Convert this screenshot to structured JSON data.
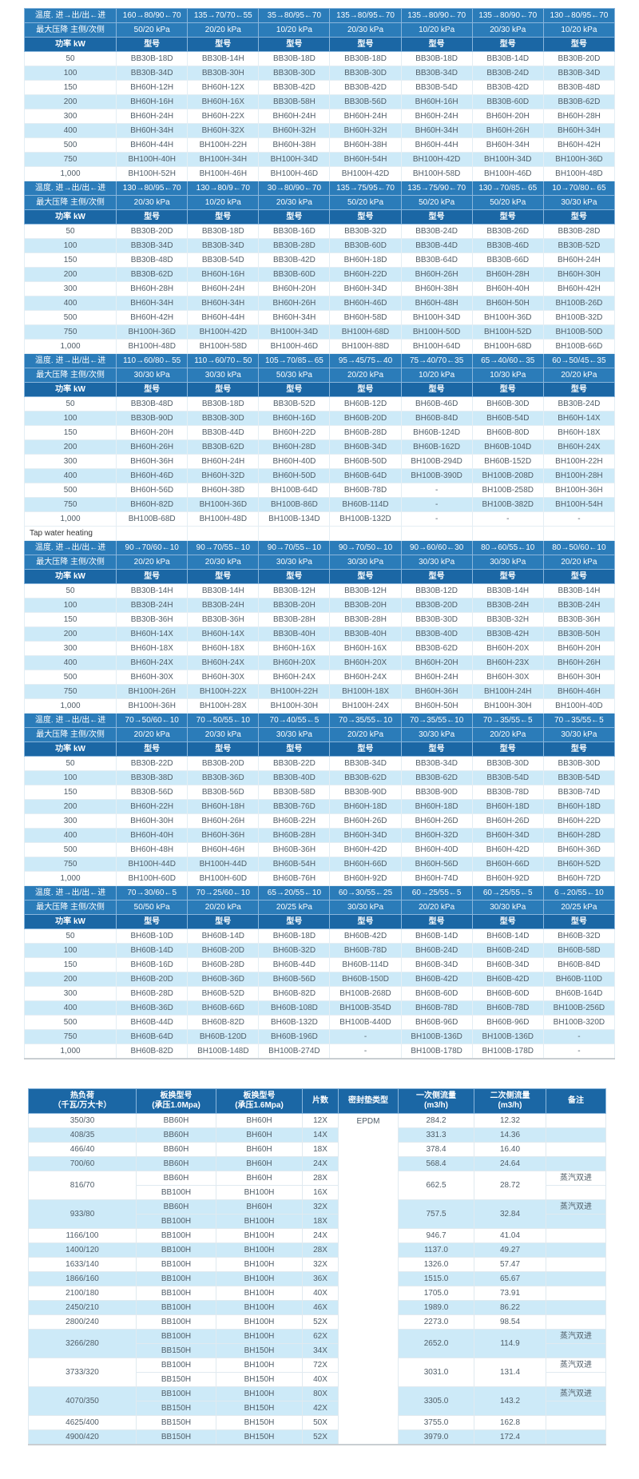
{
  "main_table": {
    "labels": {
      "temp": "温度. 进→出/出←进",
      "pressure": "最大压降 主侧/次侧",
      "power": "功率 kW",
      "model": "型号"
    },
    "power_rows": [
      "50",
      "100",
      "150",
      "200",
      "300",
      "400",
      "500",
      "750",
      "1,000"
    ],
    "tap_water_label": "Tap water heating",
    "sections": [
      {
        "temps": [
          "160→80/90←70",
          "135→70/70←55",
          "35→80/95←70",
          "135→80/95←70",
          "135→80/90←70",
          "135→80/90←70",
          "130→80/95←70"
        ],
        "pressures": [
          "50/20 kPa",
          "20/20 kPa",
          "10/20 kPa",
          "20/30 kPa",
          "10/20 kPa",
          "20/30 kPa",
          "10/20 kPa"
        ],
        "models": [
          [
            "BB30B-18D",
            "BB30B-14H",
            "BB30B-18D",
            "BB30B-18D",
            "BB30B-18D",
            "BB30B-14D",
            "BB30B-20D"
          ],
          [
            "BB30B-34D",
            "BB30B-30H",
            "BB30B-30D",
            "BB30B-30D",
            "BB30B-34D",
            "BB30B-24D",
            "BB30B-34D"
          ],
          [
            "BH60H-12H",
            "BH60H-12X",
            "BB30B-42D",
            "BB30B-42D",
            "BB30B-54D",
            "BB30B-42D",
            "BB30B-48D"
          ],
          [
            "BH60H-16H",
            "BH60H-16X",
            "BB30B-58H",
            "BB30B-56D",
            "BH60H-16H",
            "BB30B-60D",
            "BB30B-62D"
          ],
          [
            "BH60H-24H",
            "BH60H-22X",
            "BH60H-24H",
            "BH60H-24H",
            "BH60H-24H",
            "BH60H-20H",
            "BH60H-28H"
          ],
          [
            "BH60H-34H",
            "BH60H-32X",
            "BH60H-32H",
            "BH60H-32H",
            "BH60H-34H",
            "BH60H-26H",
            "BH60H-34H"
          ],
          [
            "BH60H-44H",
            "BH100H-22H",
            "BH60H-38H",
            "BH60H-38H",
            "BH60H-44H",
            "BH60H-34H",
            "BH60H-42H"
          ],
          [
            "BH100H-40H",
            "BH100H-34H",
            "BH100H-34D",
            "BH60H-54H",
            "BH100H-42D",
            "BH100H-34D",
            "BH100H-36D"
          ],
          [
            "BH100H-52H",
            "BH100H-46H",
            "BH100H-46D",
            "BH100H-42D",
            "BH100H-58D",
            "BH100H-46D",
            "BH100H-48D"
          ]
        ]
      },
      {
        "temps": [
          "130→80/95←70",
          "130→80/9←70",
          "30→80/90←70",
          "135→75/95←70",
          "135→75/90←70",
          "130→70/85←65",
          "10→70/80←65"
        ],
        "pressures": [
          "20/30 kPa",
          "10/20 kPa",
          "20/30 kPa",
          "50/20 kPa",
          "50/20 kPa",
          "50/20 kPa",
          "30/30 kPa"
        ],
        "models": [
          [
            "BB30B-20D",
            "BB30B-18D",
            "BB30B-16D",
            "BB30B-32D",
            "BB30B-24D",
            "BB30B-26D",
            "BB30B-28D"
          ],
          [
            "BB30B-34D",
            "BB30B-34D",
            "BB30B-28D",
            "BB30B-60D",
            "BB30B-44D",
            "BB30B-46D",
            "BB30B-52D"
          ],
          [
            "BB30B-48D",
            "BB30B-54D",
            "BB30B-42D",
            "BH60H-18D",
            "BB30B-64D",
            "BB30B-66D",
            "BH60H-24H"
          ],
          [
            "BB30B-62D",
            "BH60H-16H",
            "BB30B-60D",
            "BH60H-22D",
            "BH60H-26H",
            "BH60H-28H",
            "BH60H-30H"
          ],
          [
            "BH60H-28H",
            "BH60H-24H",
            "BH60H-20H",
            "BH60H-34D",
            "BH60H-38H",
            "BH60H-40H",
            "BH60H-42H"
          ],
          [
            "BH60H-34H",
            "BH60H-34H",
            "BH60H-26H",
            "BH60H-46D",
            "BH60H-48H",
            "BH60H-50H",
            "BH100B-26D"
          ],
          [
            "BH60H-42H",
            "BH60H-44H",
            "BH60H-34H",
            "BH60H-58D",
            "BH100H-34D",
            "BH100H-36D",
            "BH100B-32D"
          ],
          [
            "BH100H-36D",
            "BH100H-42D",
            "BH100H-34D",
            "BH100H-68D",
            "BH100H-50D",
            "BH100H-52D",
            "BH100B-50D"
          ],
          [
            "BH100H-48D",
            "BH100H-58D",
            "BH100H-46D",
            "BH100H-88D",
            "BH100H-64D",
            "BH100H-68D",
            "BH100B-66D"
          ]
        ]
      },
      {
        "temps": [
          "110→60/80←55",
          "110→60/70←50",
          "105→70/85←65",
          "95→45/75←40",
          "75→40/70←35",
          "65→40/60←35",
          "60→50/45←35"
        ],
        "pressures": [
          "30/30 kPa",
          "30/30 kPa",
          "50/30 kPa",
          "20/20 kPa",
          "10/20 kPa",
          "10/30 kPa",
          "20/20 kPa"
        ],
        "models": [
          [
            "BB30B-48D",
            "BB30B-18D",
            "BB30B-52D",
            "BH60B-12D",
            "BH60B-46D",
            "BH60B-30D",
            "BB30B-24D"
          ],
          [
            "BB30B-90D",
            "BB30B-30D",
            "BH60H-16D",
            "BH60B-20D",
            "BH60B-84D",
            "BH60B-54D",
            "BH60H-14X"
          ],
          [
            "BH60H-20H",
            "BB30B-44D",
            "BH60H-22D",
            "BH60B-28D",
            "BH60B-124D",
            "BH60B-80D",
            "BH60H-18X"
          ],
          [
            "BH60H-26H",
            "BB30B-62D",
            "BH60H-28D",
            "BH60B-34D",
            "BH60B-162D",
            "BH60B-104D",
            "BH60H-24X"
          ],
          [
            "BH60H-36H",
            "BH60H-24H",
            "BH60H-40D",
            "BH60B-50D",
            "BH100B-294D",
            "BH60B-152D",
            "BH100H-22H"
          ],
          [
            "BH60H-46D",
            "BH60H-32D",
            "BH60H-50D",
            "BH60B-64D",
            "BH100B-390D",
            "BH100B-208D",
            "BH100H-28H"
          ],
          [
            "BH60H-56D",
            "BH60H-38D",
            "BH100B-64D",
            "BH60B-78D",
            "-",
            "BH100B-258D",
            "BH100H-36H"
          ],
          [
            "BH60H-82D",
            "BH100H-36D",
            "BH100B-86D",
            "BH60B-114D",
            "-",
            "BH100B-382D",
            "BH100H-54H"
          ],
          [
            "BH100B-68D",
            "BH100H-48D",
            "BH100B-134D",
            "BH100B-132D",
            "-",
            "-",
            "-"
          ]
        ]
      },
      {
        "temps": [
          "90→70/60←10",
          "90→70/55←10",
          "90→70/55←10",
          "90→70/50←10",
          "90→60/60←30",
          "80→60/55←10",
          "80→50/60←10"
        ],
        "pressures": [
          "20/20 kPa",
          "20/30 kPa",
          "30/30 kPa",
          "30/30 kPa",
          "30/30 kPa",
          "30/30 kPa",
          "20/20 kPa"
        ],
        "models": [
          [
            "BB30B-14H",
            "BB30B-14H",
            "BB30B-12H",
            "BB30B-12H",
            "BB30B-12D",
            "BB30B-14H",
            "BB30B-14H"
          ],
          [
            "BB30B-24H",
            "BB30B-24H",
            "BB30B-20H",
            "BB30B-20H",
            "BB30B-20D",
            "BB30B-24H",
            "BB30B-24H"
          ],
          [
            "BB30B-36H",
            "BB30B-36H",
            "BB30B-28H",
            "BB30B-28H",
            "BB30B-30D",
            "BB30B-32H",
            "BB30B-36H"
          ],
          [
            "BH60H-14X",
            "BH60H-14X",
            "BB30B-40H",
            "BB30B-40H",
            "BB30B-40D",
            "BB30B-42H",
            "BB30B-50H"
          ],
          [
            "BH60H-18X",
            "BH60H-18X",
            "BH60H-16X",
            "BH60H-16X",
            "BB30B-62D",
            "BH60H-20X",
            "BH60H-20H"
          ],
          [
            "BH60H-24X",
            "BH60H-24X",
            "BH60H-20X",
            "BH60H-20X",
            "BH60H-20H",
            "BH60H-23X",
            "BH60H-26H"
          ],
          [
            "BH60H-30X",
            "BH60H-30X",
            "BH60H-24X",
            "BH60H-24X",
            "BH60H-24H",
            "BH60H-30X",
            "BH60H-30H"
          ],
          [
            "BH100H-26H",
            "BH100H-22X",
            "BH100H-22H",
            "BH100H-18X",
            "BH60H-36H",
            "BH100H-24H",
            "BH60H-46H"
          ],
          [
            "BH100H-36H",
            "BH100H-28X",
            "BH100H-30H",
            "BH100H-24X",
            "BH60H-50H",
            "BH100H-30H",
            "BH100H-40D"
          ]
        ]
      },
      {
        "temps": [
          "70→50/60←10",
          "70→50/55←10",
          "70→40/55←5",
          "70→35/55←10",
          "70→35/55←10",
          "70→35/55←5",
          "70→35/55←5"
        ],
        "pressures": [
          "20/20 kPa",
          "20/30 kPa",
          "30/30 kPa",
          "20/20 kPa",
          "30/30 kPa",
          "20/20 kPa",
          "30/30 kPa"
        ],
        "models": [
          [
            "BB30B-22D",
            "BB30B-20D",
            "BB30B-22D",
            "BB30B-34D",
            "BB30B-34D",
            "BB30B-30D",
            "BB30B-30D"
          ],
          [
            "BB30B-38D",
            "BB30B-36D",
            "BB30B-40D",
            "BB30B-62D",
            "BB30B-62D",
            "BB30B-54D",
            "BB30B-54D"
          ],
          [
            "BB30B-56D",
            "BB30B-56D",
            "BB30B-58D",
            "BB30B-90D",
            "BB30B-90D",
            "BB30B-78D",
            "BB30B-74D"
          ],
          [
            "BH60H-22H",
            "BH60H-18H",
            "BB30B-76D",
            "BH60H-18D",
            "BH60H-18D",
            "BH60H-18D",
            "BH60H-18D"
          ],
          [
            "BH60H-30H",
            "BH60H-26H",
            "BH60B-22H",
            "BH60H-26D",
            "BH60H-26D",
            "BH60H-26D",
            "BH60H-22D"
          ],
          [
            "BH60H-40H",
            "BH60H-36H",
            "BH60B-28H",
            "BH60H-34D",
            "BH60H-32D",
            "BH60H-34D",
            "BH60H-28D"
          ],
          [
            "BH60H-48H",
            "BH60H-46H",
            "BH60B-36H",
            "BH60H-42D",
            "BH60H-40D",
            "BH60H-42D",
            "BH60H-36D"
          ],
          [
            "BH100H-44D",
            "BH100H-44D",
            "BH60B-54H",
            "BH60H-66D",
            "BH60H-56D",
            "BH60H-66D",
            "BH60H-52D"
          ],
          [
            "BH100H-60D",
            "BH100H-60D",
            "BH60B-76H",
            "BH60H-92D",
            "BH60H-74D",
            "BH60H-92D",
            "BH60H-72D"
          ]
        ]
      },
      {
        "temps": [
          "70→30/60←5",
          "70→25/60←10",
          "65→20/55←10",
          "60→30/55←25",
          "60→25/55←5",
          "60→25/55←5",
          "6→20/55←10"
        ],
        "pressures": [
          "50/50 kPa",
          "20/20 kPa",
          "20/25 kPa",
          "30/30 kPa",
          "20/20 kPa",
          "30/30 kPa",
          "20/25 kPa"
        ],
        "models": [
          [
            "BH60B-10D",
            "BH60B-14D",
            "BH60B-18D",
            "BH60B-42D",
            "BH60B-14D",
            "BH60B-14D",
            "BH60B-32D"
          ],
          [
            "BH60B-14D",
            "BH60B-20D",
            "BH60B-32D",
            "BH60B-78D",
            "BH60B-24D",
            "BH60B-24D",
            "BH60B-58D"
          ],
          [
            "BH60B-16D",
            "BH60B-28D",
            "BH60B-44D",
            "BH60B-114D",
            "BH60B-34D",
            "BH60B-34D",
            "BH60B-84D"
          ],
          [
            "BH60B-20D",
            "BH60B-36D",
            "BH60B-56D",
            "BH60B-150D",
            "BH60B-42D",
            "BH60B-42D",
            "BH60B-110D"
          ],
          [
            "BH60B-28D",
            "BH60B-52D",
            "BH60B-82D",
            "BH100B-268D",
            "BH60B-60D",
            "BH60B-60D",
            "BH60B-164D"
          ],
          [
            "BH60B-36D",
            "BH60B-66D",
            "BH60B-108D",
            "BH100B-354D",
            "BH60B-78D",
            "BH60B-78D",
            "BH100B-256D"
          ],
          [
            "BH60B-44D",
            "BH60B-82D",
            "BH60B-132D",
            "BH100B-440D",
            "BH60B-96D",
            "BH60B-96D",
            "BH100B-320D"
          ],
          [
            "BH60B-64D",
            "BH60B-120D",
            "BH60B-196D",
            "-",
            "BH100B-136D",
            "BH100B-136D",
            "-"
          ],
          [
            "BH60B-82D",
            "BH100B-148D",
            "BH100B-274D",
            "-",
            "BH100B-178D",
            "BH100B-178D",
            "-"
          ]
        ]
      }
    ]
  },
  "bottom_table": {
    "headers": [
      {
        "l1": "热负荷",
        "l2": "（千瓦/万大卡）"
      },
      {
        "l1": "板换型号",
        "l2": "(承压1.0Mpa)"
      },
      {
        "l1": "板换型号",
        "l2": "(承压1.6Mpa)"
      },
      {
        "l1": "片数"
      },
      {
        "l1": "密封垫类型"
      },
      {
        "l1": "一次侧流量",
        "l2": "(m3/h)"
      },
      {
        "l1": "二次侧流量",
        "l2": "(m3/h)"
      },
      {
        "l1": "备注"
      }
    ],
    "gasket_type": "EPDM",
    "steam_note": "蒸汽双进",
    "rows": [
      {
        "load": "350/30",
        "models": [
          [
            "BB60H",
            "BH60H",
            "12X"
          ]
        ],
        "flow1": "284.2",
        "flow2": "12.32",
        "note": ""
      },
      {
        "load": "408/35",
        "models": [
          [
            "BB60H",
            "BH60H",
            "14X"
          ]
        ],
        "flow1": "331.3",
        "flow2": "14.36",
        "note": ""
      },
      {
        "load": "466/40",
        "models": [
          [
            "BB60H",
            "BH60H",
            "18X"
          ]
        ],
        "flow1": "378.4",
        "flow2": "16.40",
        "note": ""
      },
      {
        "load": "700/60",
        "models": [
          [
            "BB60H",
            "BH60H",
            "24X"
          ]
        ],
        "flow1": "568.4",
        "flow2": "24.64",
        "note": ""
      },
      {
        "load": "816/70",
        "models": [
          [
            "BB60H",
            "BH60H",
            "28X"
          ],
          [
            "BB100H",
            "BH100H",
            "16X"
          ]
        ],
        "flow1": "662.5",
        "flow2": "28.72",
        "note": "蒸汽双进"
      },
      {
        "load": "933/80",
        "models": [
          [
            "BB60H",
            "BH60H",
            "32X"
          ],
          [
            "BB100H",
            "BH100H",
            "18X"
          ]
        ],
        "flow1": "757.5",
        "flow2": "32.84",
        "note": "蒸汽双进"
      },
      {
        "load": "1166/100",
        "models": [
          [
            "BB100H",
            "BH100H",
            "24X"
          ]
        ],
        "flow1": "946.7",
        "flow2": "41.04",
        "note": ""
      },
      {
        "load": "1400/120",
        "models": [
          [
            "BB100H",
            "BH100H",
            "28X"
          ]
        ],
        "flow1": "1137.0",
        "flow2": "49.27",
        "note": ""
      },
      {
        "load": "1633/140",
        "models": [
          [
            "BB100H",
            "BH100H",
            "32X"
          ]
        ],
        "flow1": "1326.0",
        "flow2": "57.47",
        "note": ""
      },
      {
        "load": "1866/160",
        "models": [
          [
            "BB100H",
            "BH100H",
            "36X"
          ]
        ],
        "flow1": "1515.0",
        "flow2": "65.67",
        "note": ""
      },
      {
        "load": "2100/180",
        "models": [
          [
            "BB100H",
            "BH100H",
            "40X"
          ]
        ],
        "flow1": "1705.0",
        "flow2": "73.91",
        "note": ""
      },
      {
        "load": "2450/210",
        "models": [
          [
            "BB100H",
            "BH100H",
            "46X"
          ]
        ],
        "flow1": "1989.0",
        "flow2": "86.22",
        "note": ""
      },
      {
        "load": "2800/240",
        "models": [
          [
            "BB100H",
            "BH100H",
            "52X"
          ]
        ],
        "flow1": "2273.0",
        "flow2": "98.54",
        "note": ""
      },
      {
        "load": "3266/280",
        "models": [
          [
            "BB100H",
            "BH100H",
            "62X"
          ],
          [
            "BB150H",
            "BH150H",
            "34X"
          ]
        ],
        "flow1": "2652.0",
        "flow2": "114.9",
        "note": "蒸汽双进"
      },
      {
        "load": "3733/320",
        "models": [
          [
            "BB100H",
            "BH100H",
            "72X"
          ],
          [
            "BB150H",
            "BH150H",
            "40X"
          ]
        ],
        "flow1": "3031.0",
        "flow2": "131.4",
        "note": "蒸汽双进"
      },
      {
        "load": "4070/350",
        "models": [
          [
            "BB100H",
            "BH100H",
            "80X"
          ],
          [
            "BB150H",
            "BH150H",
            "42X"
          ]
        ],
        "flow1": "3305.0",
        "flow2": "143.2",
        "note": "蒸汽双进"
      },
      {
        "load": "4625/400",
        "models": [
          [
            "BB150H",
            "BH150H",
            "50X"
          ]
        ],
        "flow1": "3755.0",
        "flow2": "162.8",
        "note": ""
      },
      {
        "load": "4900/420",
        "models": [
          [
            "BB150H",
            "BH150H",
            "52X"
          ]
        ],
        "flow1": "3979.0",
        "flow2": "172.4",
        "note": ""
      }
    ]
  }
}
